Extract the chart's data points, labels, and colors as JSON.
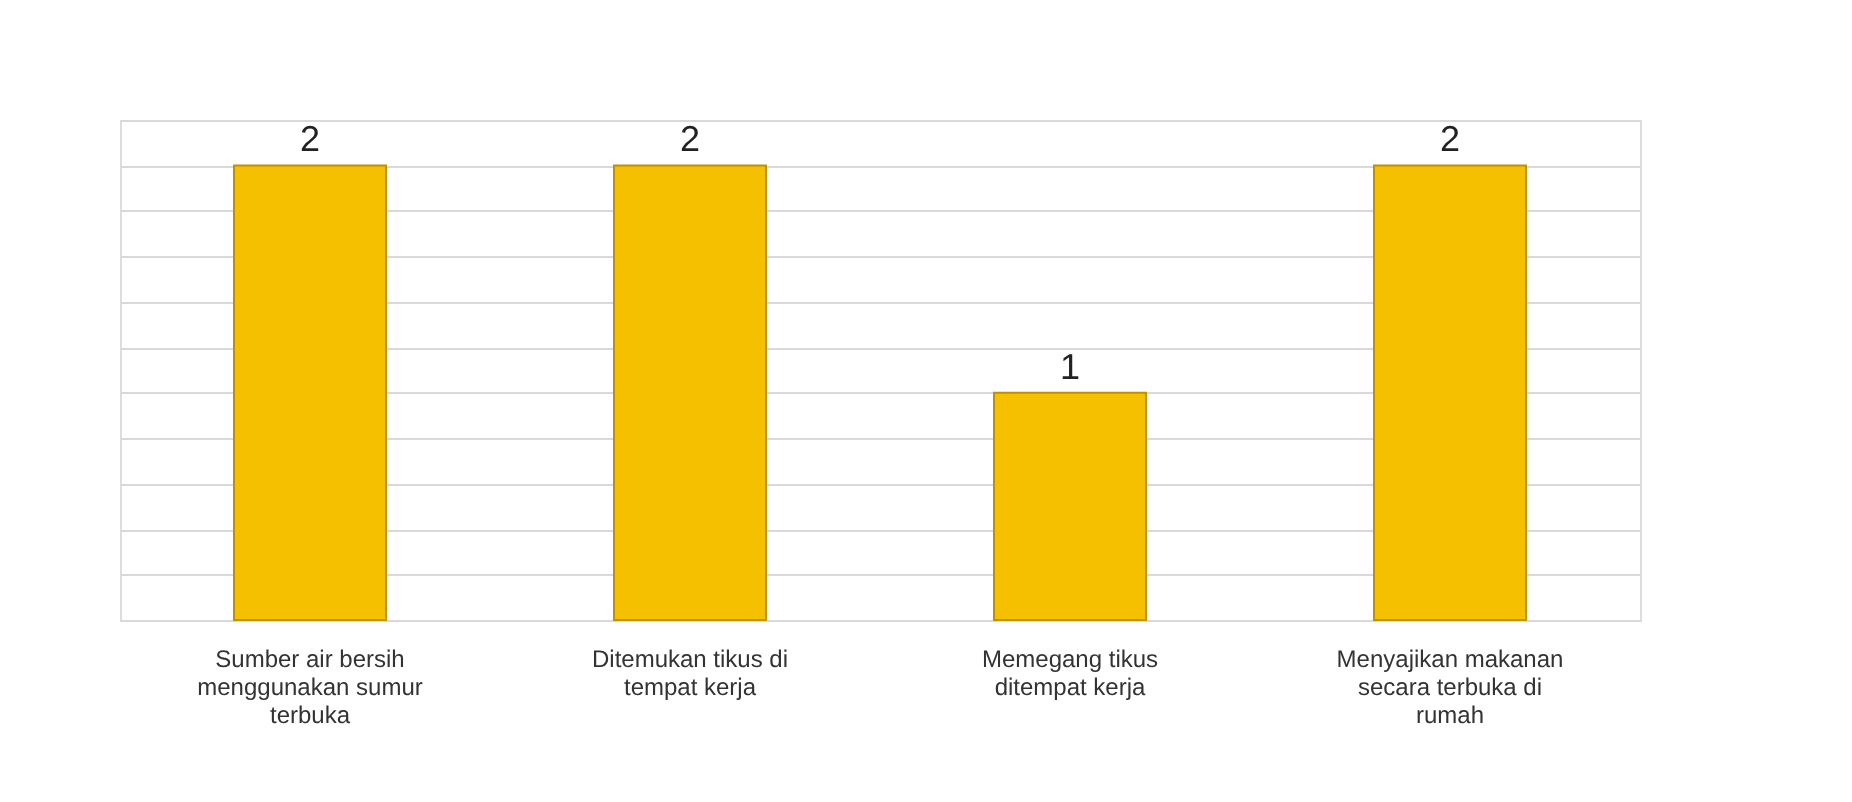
{
  "chart_data": {
    "type": "bar",
    "categories": [
      "Sumber air bersih menggunakan sumur terbuka",
      "Ditemukan tikus di tempat kerja",
      "Memegang tikus ditempat kerja",
      "Menyajikan makanan secara terbuka di rumah"
    ],
    "values": [
      2,
      2,
      1,
      2
    ],
    "color": "#f5c000",
    "data_labels": true,
    "grid": "y",
    "ylim": [
      0,
      2.2
    ],
    "tick_labels": "x"
  }
}
